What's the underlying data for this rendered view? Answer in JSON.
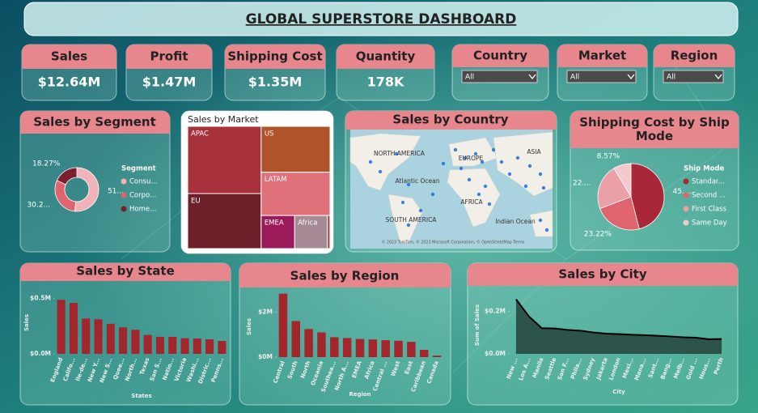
{
  "title": "GLOBAL SUPERSTORE DASHBOARD",
  "kpis": [
    {
      "label": "Sales",
      "value": "$12.64M"
    },
    {
      "label": "Profit",
      "value": "$1.47M"
    },
    {
      "label": "Shipping Cost",
      "value": "$1.35M"
    },
    {
      "label": "Quantity",
      "value": "178K"
    }
  ],
  "slicers": [
    {
      "label": "Country",
      "value": "All"
    },
    {
      "label": "Market",
      "value": "All"
    },
    {
      "label": "Region",
      "value": "All"
    }
  ],
  "map": {
    "title": "Sales by Country",
    "labels": [
      "NORTH AMERICA",
      "EUROPE",
      "ASIA",
      "Atlantic Ocean",
      "AFRICA",
      "SOUTH AMERICA",
      "Indian Ocean"
    ],
    "attribution": "© 2023 TomTom, © 2023 Microsoft Corporation, © OpenStreetMap Terms"
  },
  "chart_data": [
    {
      "type": "pie",
      "donut": true,
      "title": "Sales by Segment",
      "legend_title": "Segment",
      "categories": [
        "Consu...",
        "Corpo...",
        "Home..."
      ],
      "values": [
        51.48,
        30.25,
        18.27
      ],
      "value_labels": [
        "51...",
        "30.2...",
        "18.27%"
      ],
      "colors": [
        "#f0b3ba",
        "#e0646f",
        "#7b1f2c"
      ]
    },
    {
      "type": "treemap",
      "title": "Sales by Market",
      "categories": [
        "APAC",
        "EU",
        "US",
        "LATAM",
        "EMEA",
        "Africa",
        null
      ],
      "values": [
        3585744,
        2938089,
        2297201,
        2164605,
        806161,
        783773,
        66929
      ],
      "colors": [
        "#a8323c",
        "#6e1f2a",
        "#b0522a",
        "#e0707a",
        "#9b1b5a",
        "#a68a96",
        "#c0504d"
      ]
    },
    {
      "type": "pie",
      "donut": false,
      "title": "Shipping Cost by Ship Mode",
      "legend_title": "Ship Mode",
      "categories": [
        "Standar...",
        "Second ...",
        "First Class",
        "Same Day"
      ],
      "values": [
        45.99,
        23.22,
        22.22,
        8.57
      ],
      "value_labels": [
        "45....",
        "23.22%",
        "22....",
        "8.57%"
      ],
      "colors": [
        "#a8283a",
        "#e0646f",
        "#eba0a8",
        "#f5c8cc"
      ]
    },
    {
      "type": "bar",
      "title": "Sales by State",
      "y_label": "Sales",
      "x_label": "States",
      "color": "#a4262c",
      "categories": [
        "England",
        "Califo...",
        "Ile-de...",
        "New Y...",
        "New S...",
        "Quee...",
        "North...",
        "Texas",
        "San S...",
        "Natio...",
        "Victoria",
        "Washi...",
        "Distric...",
        "Penns..."
      ],
      "values": [
        485170,
        457688,
        317822,
        310876,
        270487,
        238312,
        216452,
        170188,
        153640,
        152936,
        141000,
        138641,
        131000,
        116511
      ],
      "ylim": [
        0,
        560000
      ],
      "yticks": [
        {
          "value": 0,
          "label": "$0.0M"
        },
        {
          "value": 500000,
          "label": "$0.5M"
        }
      ]
    },
    {
      "type": "bar",
      "title": "Sales by Region",
      "y_label": "Sales",
      "x_label": "Region",
      "color": "#a4262c",
      "categories": [
        "Central",
        "South",
        "North",
        "Oceania",
        "Southea...",
        "North A...",
        "EMEA",
        "Africa",
        "Central ...",
        "West",
        "East",
        "Caribbean",
        "Canada"
      ],
      "values": [
        2822303,
        1600907,
        1248166,
        1100185,
        884423,
        848310,
        806161,
        783773,
        752827,
        725458,
        678781,
        324281,
        66929
      ],
      "ylim": [
        0,
        2700000
      ],
      "yticks": [
        {
          "value": 0,
          "label": "$0M"
        },
        {
          "value": 2000000,
          "label": "$2M"
        }
      ]
    },
    {
      "type": "area",
      "title": "Sales by City",
      "y_label": "Sum of Sales",
      "x_label": "City",
      "color": "#24433c",
      "line_color": "#000000",
      "categories": [
        "New ...",
        "Los A...",
        "Manila",
        "Seattle",
        "San F...",
        "Phila...",
        "Sydney",
        "Jakarta",
        "London",
        "Mexi...",
        "Mana...",
        "Sant...",
        "Bang...",
        "Melb...",
        "Gold ...",
        "Hous...",
        "Perth"
      ],
      "values": [
        256368,
        175851,
        120886,
        119541,
        112669,
        109077,
        100655,
        95000,
        93000,
        90000,
        88000,
        85000,
        82000,
        78000,
        76000,
        69000,
        70000
      ],
      "ylim": [
        0,
        270000
      ],
      "yticks": [
        {
          "value": 0,
          "label": "$0.0M"
        },
        {
          "value": 200000,
          "label": "$0.2M"
        }
      ]
    }
  ]
}
